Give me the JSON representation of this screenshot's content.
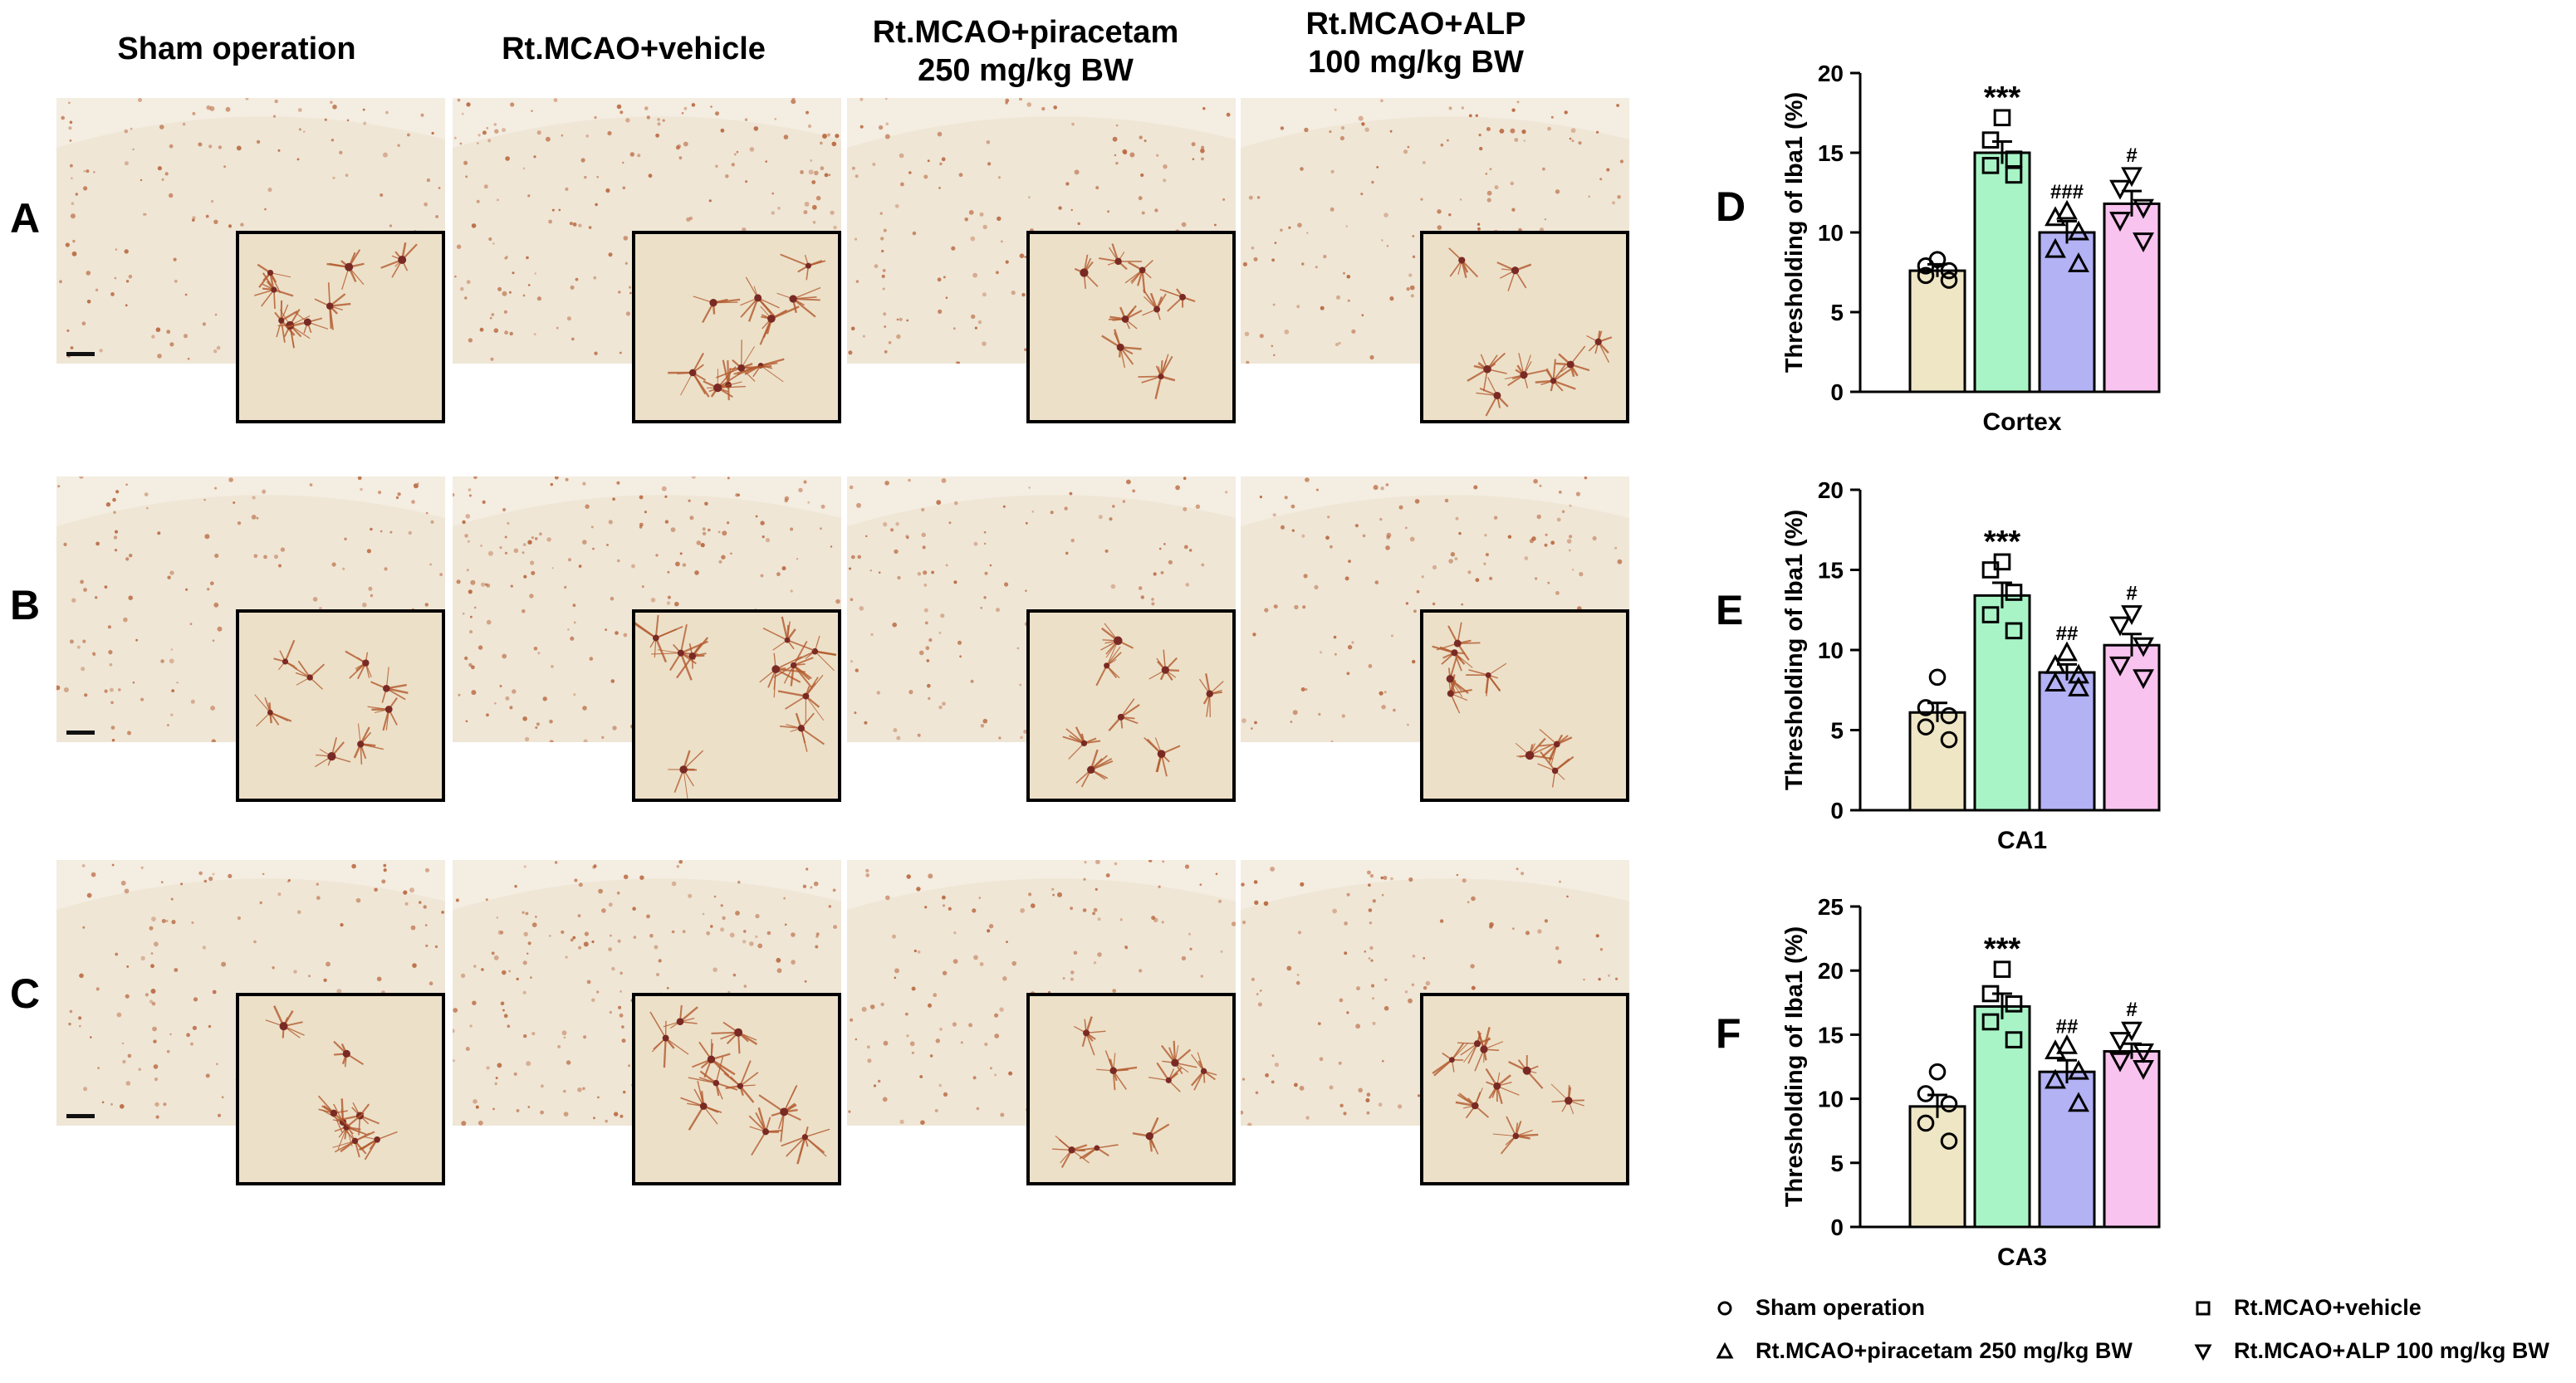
{
  "columns": [
    "Sham operation",
    "Rt.MCAO+vehicle",
    "Rt.MCAO+piracetam\n250 mg/kg BW",
    "Rt.MCAO+ALP\n100 mg/kg BW"
  ],
  "rows": [
    "A",
    "B",
    "C"
  ],
  "colors": {
    "Sham operation": "#efe6c6",
    "Rt.MCAO+vehicle": "#a9f4c6",
    "Rt.MCAO+piracetam 250 mg/kg BW": "#b3b2f4",
    "Rt.MCAO+ALP 100 mg/kg BW": "#f8c3ee",
    "tissue": "#efe6d6",
    "cell": "#b35a2e",
    "inset_bg": "#ece0c8"
  },
  "chart_data": [
    {
      "type": "bar",
      "panel": "D",
      "xlabel": "Cortex",
      "ylabel": "Thresholding of Iba1 (%)",
      "ylim": [
        0,
        20
      ],
      "yticks": [
        0,
        5,
        10,
        15,
        20
      ],
      "categories": [
        "Sham operation",
        "Rt.MCAO+vehicle",
        "Rt.MCAO+piracetam 250 mg/kg BW",
        "Rt.MCAO+ALP 100 mg/kg BW"
      ],
      "markers": [
        "circle",
        "square",
        "triangle-up",
        "triangle-down"
      ],
      "values": [
        7.6,
        15.0,
        10.0,
        11.8
      ],
      "sem": [
        0.4,
        0.7,
        0.7,
        0.8
      ],
      "points": [
        [
          8.3,
          7.9,
          7.6,
          7.3,
          7.0
        ],
        [
          17.2,
          15.8,
          14.6,
          14.2,
          13.6
        ],
        [
          11.3,
          10.9,
          10.0,
          8.9,
          8.0
        ],
        [
          13.6,
          12.8,
          11.6,
          10.8,
          9.5
        ]
      ],
      "annotations": [
        "",
        "***",
        "###",
        "#"
      ]
    },
    {
      "type": "bar",
      "panel": "E",
      "xlabel": "CA1",
      "ylabel": "Thresholding of Iba1 (%)",
      "ylim": [
        0,
        20
      ],
      "yticks": [
        0,
        5,
        10,
        15,
        20
      ],
      "categories": [
        "Sham operation",
        "Rt.MCAO+vehicle",
        "Rt.MCAO+piracetam 250 mg/kg BW",
        "Rt.MCAO+ALP 100 mg/kg BW"
      ],
      "markers": [
        "circle",
        "square",
        "triangle-up",
        "triangle-down"
      ],
      "values": [
        6.1,
        13.4,
        8.6,
        10.3
      ],
      "sem": [
        0.6,
        0.8,
        0.5,
        0.7
      ],
      "points": [
        [
          8.3,
          6.4,
          5.9,
          5.2,
          4.4
        ],
        [
          15.5,
          15.0,
          13.6,
          12.2,
          11.2
        ],
        [
          9.8,
          9.0,
          8.4,
          7.9,
          7.6
        ],
        [
          12.3,
          11.6,
          10.3,
          9.1,
          8.3
        ]
      ],
      "annotations": [
        "",
        "***",
        "##",
        "#"
      ]
    },
    {
      "type": "bar",
      "panel": "F",
      "xlabel": "CA3",
      "ylabel": "Thresholding of Iba1 (%)",
      "ylim": [
        0,
        25
      ],
      "yticks": [
        0,
        5,
        10,
        15,
        20,
        25
      ],
      "categories": [
        "Sham operation",
        "Rt.MCAO+vehicle",
        "Rt.MCAO+piracetam 250 mg/kg BW",
        "Rt.MCAO+ALP 100 mg/kg BW"
      ],
      "markers": [
        "circle",
        "square",
        "triangle-up",
        "triangle-down"
      ],
      "values": [
        9.4,
        17.2,
        12.1,
        13.7
      ],
      "sem": [
        0.9,
        1.0,
        0.9,
        0.6
      ],
      "points": [
        [
          12.1,
          10.4,
          9.6,
          8.1,
          6.7
        ],
        [
          20.1,
          18.2,
          17.4,
          16.0,
          14.6
        ],
        [
          14.1,
          13.7,
          12.1,
          11.4,
          9.6
        ],
        [
          15.4,
          14.6,
          13.7,
          13.0,
          12.4
        ]
      ],
      "annotations": [
        "",
        "***",
        "##",
        "#"
      ]
    }
  ],
  "legend": [
    {
      "label": "Sham operation",
      "marker": "circle"
    },
    {
      "label": "Rt.MCAO+vehicle",
      "marker": "square"
    },
    {
      "label": "Rt.MCAO+piracetam 250 mg/kg BW",
      "marker": "triangle-up"
    },
    {
      "label": "Rt.MCAO+ALP 100 mg/kg BW",
      "marker": "triangle-down"
    }
  ]
}
